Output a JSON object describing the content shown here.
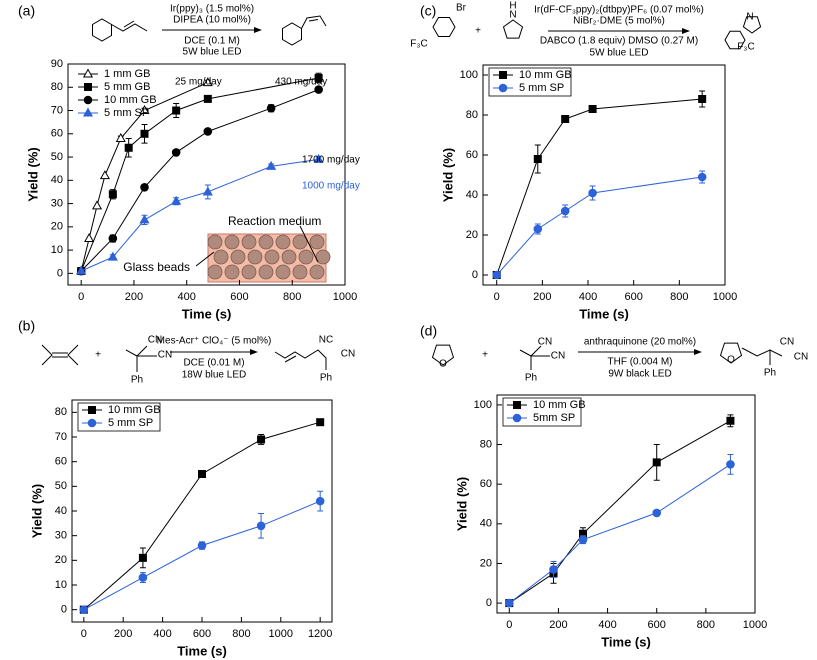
{
  "chart_data": [
    {
      "type": "line",
      "panel_label": "(a)",
      "reagents_above": [
        "Ir(ppy)₃ (1.5 mol%)",
        "DIPEA (10 mol%)"
      ],
      "reagents_below": [
        "DCE (0.1 M)",
        "5W blue LED"
      ],
      "structure_labels": [],
      "x_label": "Time (s)",
      "y_label": "Yield (%)",
      "xlim": [
        -50,
        1000
      ],
      "ylim": [
        -5,
        90
      ],
      "xticks": [
        0,
        200,
        400,
        600,
        800,
        1000
      ],
      "yticks": [
        0,
        10,
        20,
        30,
        40,
        50,
        60,
        70,
        80,
        90
      ],
      "legend": "upper left",
      "legend_box": false,
      "series": [
        {
          "name": "1 mm GB",
          "color": "#000000",
          "marker": "triangle-open",
          "x": [
            0,
            30,
            60,
            90,
            150,
            240,
            480
          ],
          "values": [
            1,
            15,
            29,
            42,
            58,
            70,
            82
          ],
          "errors": [
            0,
            0,
            0,
            0,
            1,
            1,
            1
          ]
        },
        {
          "name": "5 mm GB",
          "color": "#000000",
          "marker": "square",
          "x": [
            0,
            120,
            180,
            240,
            360,
            480,
            900
          ],
          "values": [
            1,
            34,
            54,
            60,
            70,
            75,
            84
          ],
          "errors": [
            0,
            2,
            4,
            4,
            3,
            1,
            2
          ]
        },
        {
          "name": "10 mm GB",
          "color": "#000000",
          "marker": "circle",
          "x": [
            0,
            120,
            240,
            360,
            480,
            720,
            900
          ],
          "values": [
            1,
            15,
            37,
            52,
            61,
            71,
            79
          ],
          "errors": [
            0,
            1.5,
            1,
            1,
            1,
            1.5,
            1
          ]
        },
        {
          "name": "5 mm SP",
          "color": "#2d62d8",
          "marker": "triangle",
          "x": [
            0,
            120,
            240,
            360,
            480,
            720,
            900
          ],
          "values": [
            1,
            7,
            23,
            31,
            35,
            46,
            49
          ],
          "errors": [
            0,
            1,
            2,
            1.5,
            3,
            1,
            1
          ]
        }
      ],
      "annotations": [
        {
          "text": "25 mg/day",
          "color": "#000000"
        },
        {
          "text": "430 mg/day",
          "color": "#000000"
        },
        {
          "text": "1700 mg/day",
          "color": "#000000"
        },
        {
          "text": "1000 mg/day",
          "color": "#2d62d8"
        }
      ],
      "inset_labels": [
        "Reaction medium",
        "Glass beads"
      ]
    },
    {
      "type": "line",
      "panel_label": "(b)",
      "reagents_above": [
        "Mes-Acr⁺ ClO₄⁻  (5 mol%)"
      ],
      "reagents_below": [
        "DCE (0.01 M)",
        "18W blue LED"
      ],
      "structure_labels": [
        "+",
        "CN",
        "CN",
        "Ph",
        "NC",
        "CN",
        "Ph"
      ],
      "x_label": "Time (s)",
      "y_label": "Yield (%)",
      "xlim": [
        -60,
        1260
      ],
      "ylim": [
        -5,
        85
      ],
      "xticks": [
        0,
        200,
        400,
        600,
        800,
        1000,
        1200
      ],
      "yticks": [
        0,
        10,
        20,
        30,
        40,
        50,
        60,
        70,
        80
      ],
      "legend": "upper left",
      "legend_box": true,
      "series": [
        {
          "name": "10 mm GB",
          "color": "#000000",
          "marker": "square",
          "x": [
            0,
            300,
            600,
            900,
            1200
          ],
          "values": [
            0,
            21,
            55,
            69,
            76
          ],
          "errors": [
            0,
            4,
            0,
            2,
            1
          ]
        },
        {
          "name": "5 mm SP",
          "color": "#2d62d8",
          "marker": "circle",
          "x": [
            0,
            300,
            600,
            900,
            1200
          ],
          "values": [
            0,
            13,
            26,
            34,
            44
          ],
          "errors": [
            0,
            2,
            1.5,
            5,
            4
          ]
        }
      ]
    },
    {
      "type": "line",
      "panel_label": "(c)",
      "reagents_above": [
        "Ir(dF-CF₃ppy)₂(dtbpy)PF₆ (0.07 mol%)",
        "NiBr₂·DME (5 mol%)"
      ],
      "reagents_below": [
        "DABCO (1.8 equiv) DMSO (0.27 M)",
        "5W blue LED"
      ],
      "structure_labels": [
        "Br",
        "F₃C",
        "+",
        "H",
        "N",
        "N",
        "F₃C"
      ],
      "x_label": "Time (s)",
      "y_label": "Yield (%)",
      "xlim": [
        -60,
        1000
      ],
      "ylim": [
        -5,
        105
      ],
      "xticks": [
        0,
        200,
        400,
        600,
        800,
        1000
      ],
      "yticks": [
        0,
        20,
        40,
        60,
        80,
        100
      ],
      "legend": "upper left",
      "legend_box": true,
      "series": [
        {
          "name": "10 mm GB",
          "color": "#000000",
          "marker": "square",
          "x": [
            0,
            180,
            300,
            420,
            900
          ],
          "values": [
            0,
            58,
            78,
            83,
            88
          ],
          "errors": [
            0,
            7,
            0,
            0,
            4
          ]
        },
        {
          "name": "5 mm SP",
          "color": "#2d62d8",
          "marker": "circle",
          "x": [
            0,
            180,
            300,
            420,
            900
          ],
          "values": [
            0,
            23,
            32,
            41,
            49
          ],
          "errors": [
            0,
            2.5,
            3,
            3.5,
            3
          ]
        }
      ]
    },
    {
      "type": "line",
      "panel_label": "(d)",
      "reagents_above": [
        "anthraquinone (20 mol%)"
      ],
      "reagents_below": [
        "THF (0.004 M)",
        "9W black LED"
      ],
      "structure_labels": [
        "O",
        "+",
        "CN",
        "CN",
        "Ph",
        "O",
        "CN",
        "CN",
        "Ph"
      ],
      "x_label": "Time (s)",
      "y_label": "Yield (%)",
      "xlim": [
        -50,
        1000
      ],
      "ylim": [
        -5,
        105
      ],
      "xticks": [
        0,
        200,
        400,
        600,
        800,
        1000
      ],
      "yticks": [
        0,
        20,
        40,
        60,
        80,
        100
      ],
      "legend": "upper left",
      "legend_box": true,
      "series": [
        {
          "name": "10 mm GB",
          "color": "#000000",
          "marker": "square",
          "x": [
            0,
            180,
            300,
            600,
            900
          ],
          "values": [
            0,
            15,
            35,
            71,
            92
          ],
          "errors": [
            0,
            5,
            3,
            9,
            3
          ]
        },
        {
          "name": "5mm SP",
          "color": "#2d62d8",
          "marker": "circle",
          "x": [
            0,
            180,
            300,
            600,
            900
          ],
          "values": [
            0,
            17,
            32,
            45.5,
            70
          ],
          "errors": [
            0,
            4,
            2,
            0,
            5
          ]
        }
      ]
    }
  ]
}
